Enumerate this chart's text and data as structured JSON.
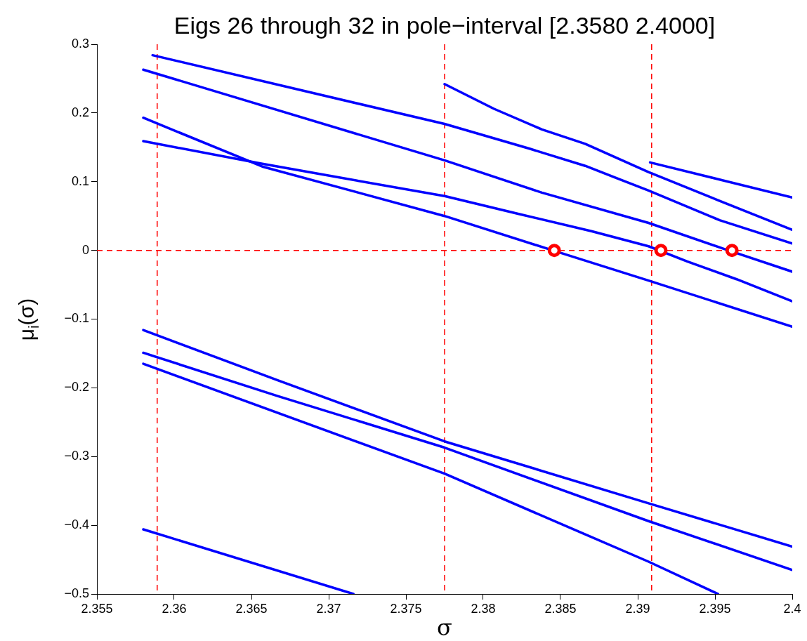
{
  "chart_data": {
    "type": "line",
    "title": "Eigs 26 through 32 in pole−interval [2.3580 2.4000]",
    "xlabel": "σ",
    "ylabel": "μ$_{i}$(σ)",
    "xlim": [
      2.355,
      2.4
    ],
    "xticks": [
      2.355,
      2.36,
      2.365,
      2.37,
      2.375,
      2.38,
      2.385,
      2.39,
      2.395,
      2.4
    ],
    "ylim": [
      -0.5,
      0.3
    ],
    "yticks": [
      {
        "value": -0.5,
        "label": "−0.5"
      },
      {
        "value": -0.4,
        "label": "−0.4"
      },
      {
        "value": -0.3,
        "label": "−0.3"
      },
      {
        "value": -0.2,
        "label": "−0.2"
      },
      {
        "value": -0.1,
        "label": "−0.1"
      },
      0,
      0.1,
      0.2,
      0.3
    ],
    "grid": false,
    "legend": false,
    "marker": "none",
    "line_style": "solid",
    "series": [
      {
        "color": "#0000ff",
        "x": [
          2.3586,
          2.3775,
          2.383,
          2.3866,
          2.3907,
          2.3953,
          2.4
        ],
        "values": [
          0.284,
          0.184,
          0.148,
          0.123,
          0.087,
          0.044,
          0.01
        ]
      },
      {
        "color": "#0000ff",
        "x": [
          2.3775,
          2.3807,
          2.3838,
          2.3866,
          2.3907,
          2.3953,
          2.4
        ],
        "values": [
          0.242,
          0.206,
          0.176,
          0.155,
          0.114,
          0.072,
          0.03
        ]
      },
      {
        "color": "#0000ff",
        "x": [
          2.358,
          2.3775,
          2.3838,
          2.3907,
          2.3956,
          2.4
        ],
        "values": [
          0.263,
          0.131,
          0.084,
          0.04,
          0.002,
          -0.031
        ]
      },
      {
        "color": "#0000ff",
        "x": [
          2.358,
          2.3657,
          2.3775,
          2.3823,
          2.387,
          2.3907,
          2.3932,
          2.3964,
          2.4
        ],
        "values": [
          0.159,
          0.126,
          0.079,
          0.053,
          0.028,
          0.006,
          -0.016,
          -0.042,
          -0.074
        ]
      },
      {
        "color": "#0000ff",
        "x": [
          2.358,
          2.3657,
          2.3775,
          2.3845,
          2.3907,
          2.4
        ],
        "values": [
          0.193,
          0.122,
          0.05,
          0.0,
          -0.044,
          -0.111
        ]
      },
      {
        "color": "#0000ff",
        "x": [
          2.3908,
          2.4
        ],
        "values": [
          0.128,
          0.077
        ]
      },
      {
        "color": "#0000ff",
        "x": [
          2.358,
          2.3667,
          2.3775,
          2.3907,
          2.4
        ],
        "values": [
          -0.116,
          -0.189,
          -0.278,
          -0.368,
          -0.431
        ]
      },
      {
        "color": "#0000ff",
        "x": [
          2.358,
          2.3667,
          2.3775,
          2.3907,
          2.4
        ],
        "values": [
          -0.149,
          -0.212,
          -0.287,
          -0.394,
          -0.465
        ]
      },
      {
        "color": "#0000ff",
        "x": [
          2.358,
          2.3775,
          2.3907,
          2.3952
        ],
        "values": [
          -0.165,
          -0.325,
          -0.453,
          -0.5
        ]
      },
      {
        "color": "#0000ff",
        "x": [
          2.358,
          2.3716
        ],
        "values": [
          -0.406,
          -0.5
        ]
      },
      {
        "type": "scatter",
        "marker": "circle",
        "color": "#ff0000",
        "x": [
          2.3846,
          2.3915,
          2.3961
        ],
        "values": [
          0,
          0,
          0
        ]
      }
    ],
    "ref_lines": [
      {
        "axis": "x",
        "value": 2.3589,
        "color": "#ff0000",
        "line_style": "dashed"
      },
      {
        "axis": "x",
        "value": 2.3775,
        "color": "#ff0000",
        "line_style": "dashed"
      },
      {
        "axis": "x",
        "value": 2.3909,
        "color": "#ff0000",
        "line_style": "dashed"
      },
      {
        "axis": "y",
        "value": 0,
        "color": "#ff0000",
        "line_style": "dashed"
      }
    ]
  }
}
